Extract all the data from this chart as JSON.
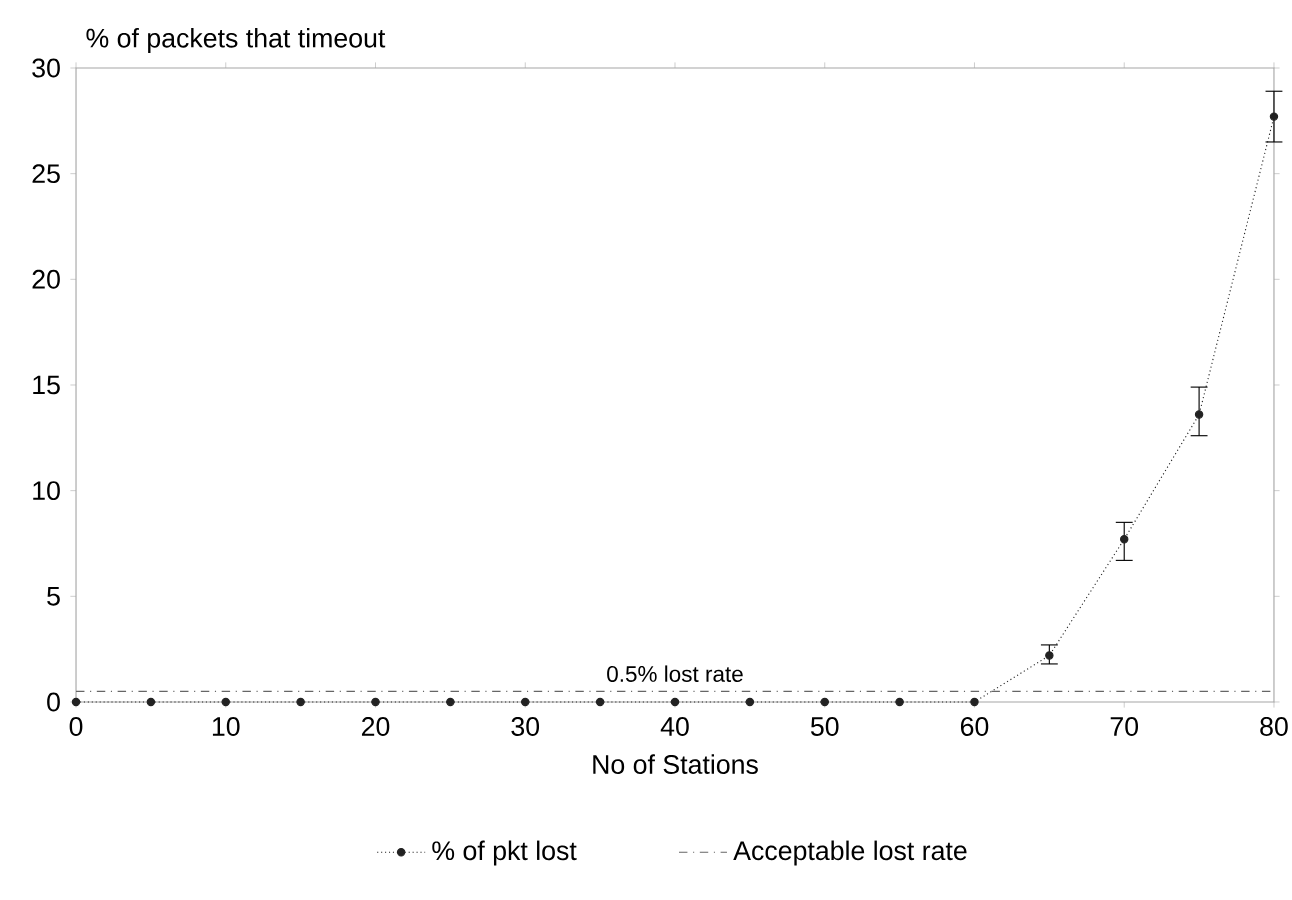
{
  "chart_data": {
    "type": "line",
    "ylabel": "% of packets that timeout",
    "xlabel": "No of Stations",
    "xlim": [
      0,
      80
    ],
    "xticks": [
      0,
      10,
      20,
      30,
      40,
      50,
      60,
      70,
      80
    ],
    "ylim": [
      0,
      30
    ],
    "yticks": [
      0,
      5,
      10,
      15,
      20,
      25,
      30
    ],
    "grid": false,
    "legend": "bottom",
    "annotations": [
      {
        "text": "0.5% lost rate",
        "x": 40,
        "y": 0.5
      }
    ],
    "series": [
      {
        "name": "% of pkt lost",
        "color": "#222222",
        "marker": "circle",
        "line_style": "dotted",
        "x": [
          0,
          5,
          10,
          15,
          20,
          25,
          30,
          35,
          40,
          45,
          50,
          55,
          60,
          65,
          70,
          75,
          80
        ],
        "values": [
          0,
          0,
          0,
          0,
          0,
          0,
          0,
          0,
          0,
          0,
          0,
          0,
          0,
          2.2,
          7.7,
          13.6,
          27.7
        ],
        "errors": [
          null,
          null,
          null,
          null,
          null,
          null,
          null,
          null,
          null,
          null,
          null,
          null,
          null,
          [
            1.8,
            2.7
          ],
          [
            6.7,
            8.5
          ],
          [
            12.6,
            14.9
          ],
          [
            26.5,
            28.9
          ]
        ]
      },
      {
        "name": "Acceptable lost rate",
        "color": "#666666",
        "marker": "none",
        "line_style": "dashed",
        "x": [
          0,
          80
        ],
        "values": [
          0.5,
          0.5
        ]
      }
    ]
  }
}
